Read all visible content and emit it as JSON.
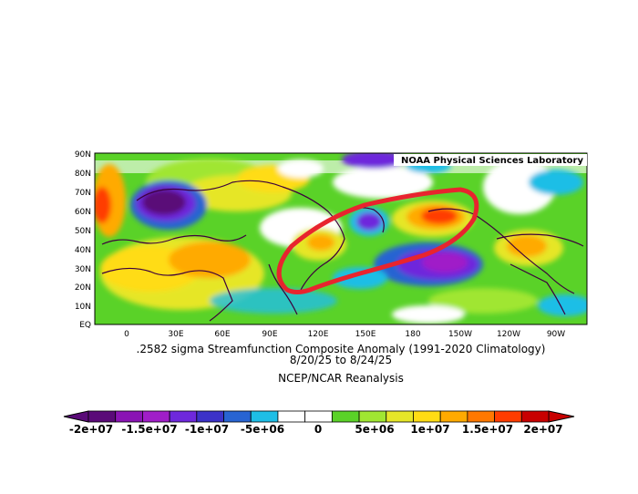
{
  "map": {
    "credit": "NOAA Physical Sciences Laboratory",
    "lat_labels": [
      "90N",
      "80N",
      "70N",
      "60N",
      "50N",
      "40N",
      "30N",
      "20N",
      "10N",
      "EQ"
    ],
    "lon_labels": [
      "0",
      "30E",
      "60E",
      "90E",
      "120E",
      "150E",
      "180",
      "150W",
      "120W",
      "90W"
    ]
  },
  "caption": {
    "line1": ".2582 sigma Streamfunction  Composite Anomaly (1991-2020 Climatology)",
    "line2": "8/20/25   to 8/24/25",
    "line3": "NCEP/NCAR Reanalysis"
  },
  "colorbar": {
    "labels": [
      "-2e+07",
      "-1.5e+07",
      "-1e+07",
      "-5e+06",
      "0",
      "5e+06",
      "1e+07",
      "1.5e+07",
      "2e+07"
    ],
    "colors": [
      "#5a0a78",
      "#8a14b4",
      "#a01ec8",
      "#6e28dc",
      "#3c32c8",
      "#2864d2",
      "#1ebee6",
      "#ffffff",
      "#ffffff",
      "#5ad228",
      "#a0e632",
      "#e6e628",
      "#ffdc14",
      "#ffaa00",
      "#ff7800",
      "#ff3c00",
      "#c80000"
    ]
  },
  "colors": {
    "annotation_circle": "#e8242e",
    "coastline": "#3c003c"
  }
}
